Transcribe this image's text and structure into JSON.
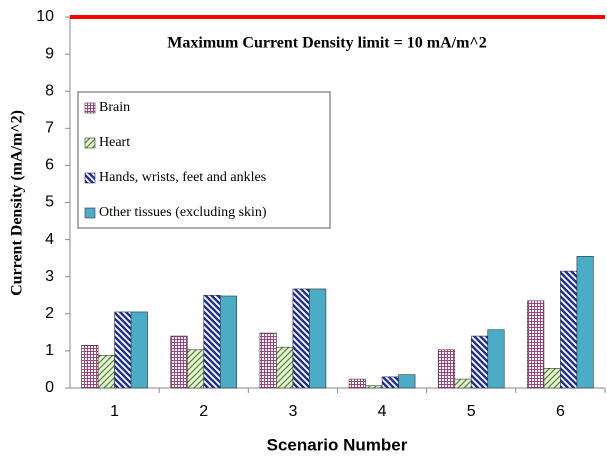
{
  "chart_data": {
    "type": "bar",
    "x_label": "Scenario Number",
    "y_label": "Current Density (mA/m^2)",
    "categories": [
      "1",
      "2",
      "3",
      "4",
      "5",
      "6"
    ],
    "series": [
      {
        "name": "Brain",
        "color": "#a0427f",
        "pattern": "grid",
        "values": [
          1.15,
          1.4,
          1.48,
          0.24,
          1.03,
          2.35
        ]
      },
      {
        "name": "Heart",
        "color": "#4e8a2a",
        "pattern": "diagonal-light",
        "values": [
          0.88,
          1.03,
          1.1,
          0.06,
          0.24,
          0.53
        ]
      },
      {
        "name": "Hands, wrists, feet and ankles",
        "color": "#1f2f8f",
        "pattern": "diagonal-dark",
        "values": [
          2.05,
          2.5,
          2.67,
          0.3,
          1.4,
          3.15
        ]
      },
      {
        "name": "Other tissues (excluding skin)",
        "color": "#4bacc6",
        "pattern": "solid",
        "values": [
          2.05,
          2.48,
          2.67,
          0.36,
          1.57,
          3.55
        ]
      }
    ],
    "limit": {
      "value": 10,
      "label": "Maximum Current Density limit = 10 mA/m^2",
      "color": "#ff0000"
    },
    "ylim": [
      0,
      10
    ],
    "yticks": [
      0,
      1,
      2,
      3,
      4,
      5,
      6,
      7,
      8,
      9,
      10
    ],
    "grid": false
  }
}
